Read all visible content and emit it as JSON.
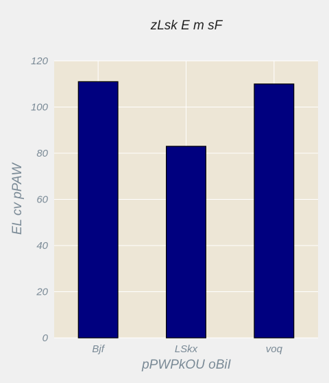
{
  "chart_data": {
    "type": "bar",
    "title": "zLsk E m sF",
    "xlabel": "pPWPkOU oBiI",
    "ylabel": "EL cv pPAW",
    "categories": [
      "Bjf",
      "LSkx",
      "voq"
    ],
    "values": [
      111,
      83,
      110
    ],
    "ylim": [
      0,
      120
    ],
    "yticks": [
      0,
      20,
      40,
      60,
      80,
      100,
      120
    ],
    "grid": true,
    "legend": "none",
    "colors": {
      "bar": "#00007f",
      "bar_edge": "#000000",
      "plot_background": "#ede6d6",
      "grid": "#ffffff",
      "figure_background": "#f0f0f0"
    }
  }
}
